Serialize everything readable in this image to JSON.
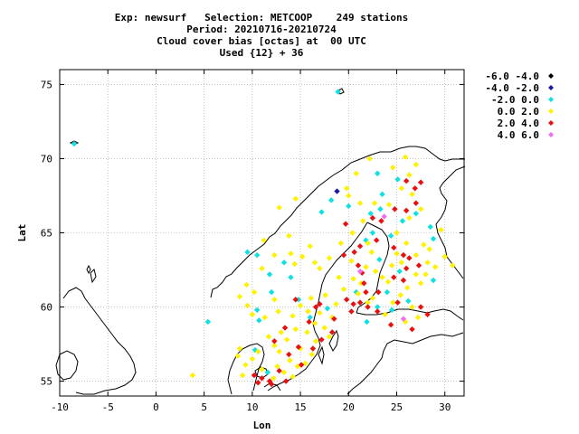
{
  "chart_data": {
    "type": "scatter",
    "title_lines": [
      "Exp: newsurf   Selection: METCOOP    249 stations",
      "Period: 20210716-20210724",
      "Cloud cover bias [octas] at  00 UTC",
      "Used {12} + 36"
    ],
    "xlabel": "Lon",
    "ylabel": "Lat",
    "xlim": [
      -10,
      32
    ],
    "ylim": [
      54,
      76
    ],
    "xticks": [
      -10,
      -5,
      0,
      5,
      10,
      15,
      20,
      25,
      30
    ],
    "yticks": [
      55,
      60,
      65,
      70,
      75
    ],
    "grid": true,
    "legend_position": "right",
    "series": [
      {
        "name": "-6.0 -4.0",
        "color": "#000000",
        "points": []
      },
      {
        "name": "-4.0 -2.0",
        "color": "#1a1aa6",
        "points": [
          [
            18.8,
            67.8
          ]
        ]
      },
      {
        "name": "-2.0 0.0",
        "color": "#11e0e0",
        "points": [
          [
            -8.5,
            71.0
          ],
          [
            18.9,
            74.5
          ],
          [
            5.4,
            59.0
          ],
          [
            9.5,
            63.7
          ],
          [
            10.5,
            63.5
          ],
          [
            11.8,
            62.2
          ],
          [
            13.3,
            63.0
          ],
          [
            14.0,
            62.0
          ],
          [
            12.0,
            61.0
          ],
          [
            10.5,
            59.8
          ],
          [
            10.7,
            59.1
          ],
          [
            14.8,
            60.5
          ],
          [
            16.0,
            59.3
          ],
          [
            17.8,
            59.9
          ],
          [
            20.8,
            61.0
          ],
          [
            17.2,
            66.4
          ],
          [
            18.2,
            67.2
          ],
          [
            20.0,
            66.8
          ],
          [
            21.8,
            64.5
          ],
          [
            22.3,
            66.3
          ],
          [
            23.5,
            67.6
          ],
          [
            23.0,
            69.0
          ],
          [
            25.1,
            68.6
          ],
          [
            27.0,
            66.3
          ],
          [
            28.5,
            65.4
          ],
          [
            28.8,
            64.6
          ],
          [
            22.5,
            65.0
          ],
          [
            23.2,
            63.2
          ],
          [
            24.4,
            64.8
          ],
          [
            25.3,
            62.4
          ],
          [
            24.0,
            61.0
          ],
          [
            21.9,
            59.0
          ],
          [
            24.5,
            59.8
          ],
          [
            26.2,
            60.4
          ],
          [
            23.0,
            60.0
          ],
          [
            28.8,
            61.8
          ],
          [
            11.6,
            55.6
          ],
          [
            10.3,
            57.1
          ],
          [
            25.6,
            65.8
          ],
          [
            23.3,
            66.6
          ]
        ]
      },
      {
        "name": "0.0 2.0",
        "color": "#fff200",
        "points": [
          [
            3.8,
            55.4
          ],
          [
            9.0,
            55.4
          ],
          [
            9.3,
            56.1
          ],
          [
            8.5,
            56.7
          ],
          [
            10.0,
            56.5
          ],
          [
            8.7,
            57.2
          ],
          [
            10.6,
            57.0
          ],
          [
            11.0,
            55.8
          ],
          [
            12.2,
            55.2
          ],
          [
            12.6,
            56.0
          ],
          [
            13.3,
            55.6
          ],
          [
            14.2,
            55.3
          ],
          [
            14.7,
            56.0
          ],
          [
            15.5,
            56.2
          ],
          [
            16.2,
            56.8
          ],
          [
            16.6,
            57.7
          ],
          [
            15.0,
            57.2
          ],
          [
            13.6,
            57.8
          ],
          [
            12.3,
            57.4
          ],
          [
            13.0,
            58.3
          ],
          [
            14.5,
            58.5
          ],
          [
            15.7,
            58.3
          ],
          [
            16.5,
            58.9
          ],
          [
            17.5,
            58.6
          ],
          [
            18.3,
            59.3
          ],
          [
            17.0,
            59.6
          ],
          [
            18.7,
            60.2
          ],
          [
            17.6,
            60.8
          ],
          [
            16.1,
            60.6
          ],
          [
            15.0,
            60.1
          ],
          [
            14.2,
            59.4
          ],
          [
            12.7,
            59.7
          ],
          [
            11.3,
            59.3
          ],
          [
            10.0,
            59.5
          ],
          [
            9.5,
            60.1
          ],
          [
            10.2,
            61.0
          ],
          [
            8.7,
            60.7
          ],
          [
            9.4,
            61.5
          ],
          [
            11.0,
            62.6
          ],
          [
            12.3,
            63.5
          ],
          [
            13.8,
            64.8
          ],
          [
            11.2,
            64.5
          ],
          [
            12.8,
            66.7
          ],
          [
            14.5,
            67.3
          ],
          [
            14.4,
            62.9
          ],
          [
            15.2,
            63.4
          ],
          [
            16.0,
            64.1
          ],
          [
            17.0,
            62.6
          ],
          [
            18.0,
            63.3
          ],
          [
            19.2,
            64.3
          ],
          [
            20.4,
            65.0
          ],
          [
            21.5,
            65.8
          ],
          [
            21.2,
            67.0
          ],
          [
            19.8,
            68.0
          ],
          [
            20.8,
            69.0
          ],
          [
            22.2,
            70.0
          ],
          [
            24.6,
            69.4
          ],
          [
            25.9,
            70.1
          ],
          [
            27.0,
            69.6
          ],
          [
            25.5,
            68.0
          ],
          [
            26.6,
            67.6
          ],
          [
            27.5,
            66.6
          ],
          [
            26.3,
            66.0
          ],
          [
            25.0,
            65.0
          ],
          [
            26.0,
            64.3
          ],
          [
            27.0,
            63.5
          ],
          [
            28.2,
            63.0
          ],
          [
            29.0,
            62.7
          ],
          [
            28.0,
            62.2
          ],
          [
            27.5,
            61.6
          ],
          [
            26.1,
            61.3
          ],
          [
            25.4,
            60.8
          ],
          [
            24.1,
            61.7
          ],
          [
            22.8,
            62.4
          ],
          [
            21.8,
            62.7
          ],
          [
            21.3,
            61.6
          ],
          [
            22.0,
            60.3
          ],
          [
            21.0,
            60.9
          ],
          [
            20.5,
            61.9
          ],
          [
            19.0,
            62.0
          ],
          [
            20.3,
            63.1
          ],
          [
            22.4,
            63.7
          ],
          [
            25.5,
            63.0
          ],
          [
            24.5,
            62.8
          ],
          [
            26.6,
            60.0
          ],
          [
            27.2,
            59.3
          ],
          [
            25.9,
            59.0
          ],
          [
            24.6,
            60.3
          ],
          [
            23.8,
            59.5
          ],
          [
            22.5,
            60.6
          ],
          [
            30.0,
            63.4
          ],
          [
            29.6,
            65.2
          ],
          [
            30.8,
            62.8
          ],
          [
            28.4,
            63.9
          ],
          [
            27.8,
            64.2
          ],
          [
            26.3,
            68.9
          ],
          [
            24.2,
            66.9
          ],
          [
            22.7,
            67.0
          ],
          [
            13.9,
            56.4
          ],
          [
            12.8,
            57.0
          ],
          [
            15.8,
            59.7
          ],
          [
            14.0,
            63.6
          ],
          [
            16.5,
            63.0
          ],
          [
            22.0,
            64.3
          ],
          [
            12.3,
            60.5
          ],
          [
            18.0,
            58.0
          ],
          [
            11.7,
            58.0
          ],
          [
            23.5,
            62.0
          ],
          [
            19.5,
            61.2
          ],
          [
            27.0,
            62.2
          ],
          [
            25.0,
            63.6
          ],
          [
            20.0,
            67.5
          ]
        ]
      },
      {
        "name": "2.0 4.0",
        "color": "#e81010",
        "points": [
          [
            10.2,
            55.4
          ],
          [
            11.0,
            55.2
          ],
          [
            11.8,
            55.0
          ],
          [
            10.6,
            54.9
          ],
          [
            12.0,
            54.8
          ],
          [
            12.8,
            55.7
          ],
          [
            13.8,
            56.8
          ],
          [
            14.8,
            57.3
          ],
          [
            16.3,
            57.2
          ],
          [
            17.2,
            57.8
          ],
          [
            15.1,
            56.1
          ],
          [
            13.4,
            58.6
          ],
          [
            15.9,
            59.0
          ],
          [
            17.0,
            60.2
          ],
          [
            18.5,
            59.2
          ],
          [
            16.6,
            60.0
          ],
          [
            20.3,
            59.7
          ],
          [
            19.8,
            60.5
          ],
          [
            20.5,
            60.2
          ],
          [
            21.2,
            60.3
          ],
          [
            22.0,
            60.0
          ],
          [
            23.0,
            59.7
          ],
          [
            21.8,
            61.0
          ],
          [
            21.4,
            62.3
          ],
          [
            21.6,
            61.6
          ],
          [
            20.6,
            63.7
          ],
          [
            19.5,
            63.5
          ],
          [
            21.2,
            64.1
          ],
          [
            22.9,
            64.5
          ],
          [
            24.7,
            64.0
          ],
          [
            25.7,
            63.5
          ],
          [
            27.3,
            62.8
          ],
          [
            26.3,
            63.3
          ],
          [
            26.0,
            62.6
          ],
          [
            25.7,
            61.8
          ],
          [
            24.7,
            62.0
          ],
          [
            23.1,
            61.0
          ],
          [
            25.1,
            60.3
          ],
          [
            24.4,
            58.8
          ],
          [
            26.6,
            58.5
          ],
          [
            27.5,
            60.0
          ],
          [
            28.2,
            59.5
          ],
          [
            26.0,
            66.5
          ],
          [
            27.0,
            67.0
          ],
          [
            26.9,
            68.0
          ],
          [
            27.5,
            68.4
          ],
          [
            26.0,
            68.5
          ],
          [
            24.8,
            66.6
          ],
          [
            23.4,
            65.8
          ],
          [
            22.5,
            66.0
          ],
          [
            21.0,
            62.8
          ],
          [
            19.7,
            65.6
          ],
          [
            12.3,
            57.7
          ],
          [
            13.5,
            55.0
          ],
          [
            14.5,
            60.5
          ],
          [
            18.3,
            58.3
          ]
        ]
      },
      {
        "name": "4.0 6.0",
        "color": "#f070f0",
        "points": [
          [
            21.2,
            62.4
          ],
          [
            25.7,
            59.2
          ],
          [
            23.7,
            66.1
          ]
        ]
      }
    ]
  }
}
